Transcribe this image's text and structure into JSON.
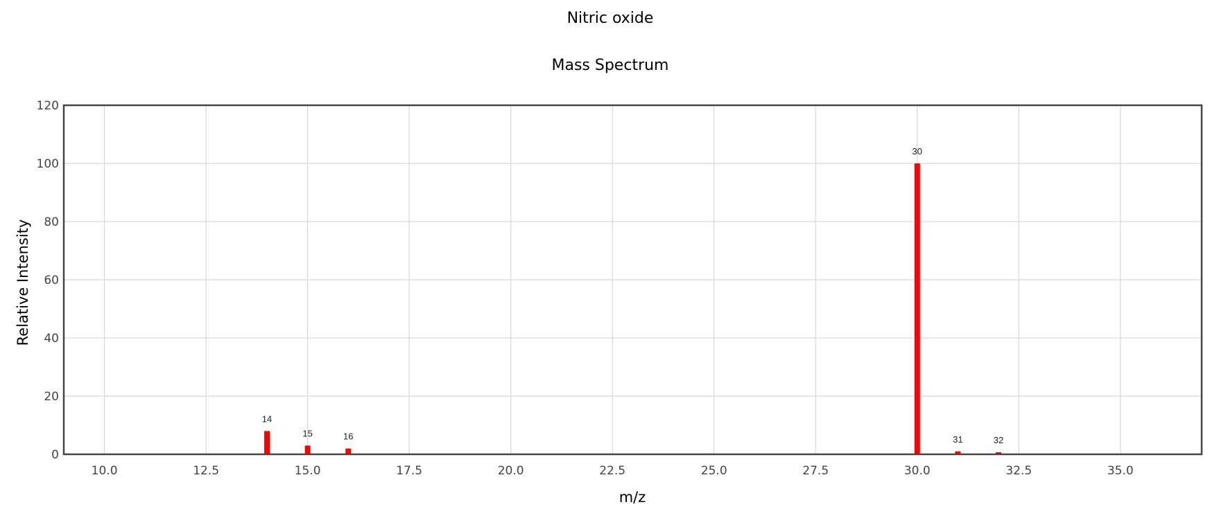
{
  "chart_data": {
    "type": "bar",
    "title": "Nitric oxide",
    "subtitle": "Mass Spectrum",
    "xlabel": "m/z",
    "ylabel": "Relative Intensity",
    "xlim": [
      9.0,
      37.0
    ],
    "ylim": [
      0,
      120
    ],
    "x_ticks": [
      "10.0",
      "12.5",
      "15.0",
      "17.5",
      "20.0",
      "22.5",
      "25.0",
      "27.5",
      "30.0",
      "32.5",
      "35.0"
    ],
    "y_ticks": [
      "0",
      "20",
      "40",
      "60",
      "80",
      "100",
      "120"
    ],
    "grid": true,
    "series": [
      {
        "color": "#ff0000",
        "x": [
          14,
          15,
          16,
          30,
          31,
          32
        ],
        "values": [
          8.0,
          3.0,
          2.0,
          100.0,
          1.0,
          0.7
        ],
        "labels": [
          "14",
          "15",
          "16",
          "30",
          "31",
          "32"
        ]
      }
    ]
  }
}
